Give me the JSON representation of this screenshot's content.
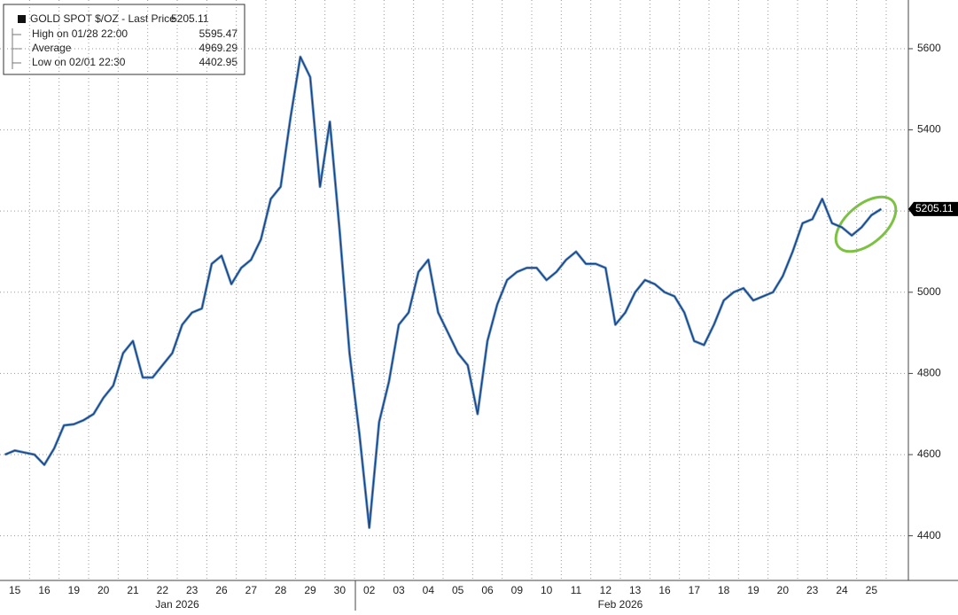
{
  "chart_data": {
    "type": "line",
    "legend": {
      "title": "GOLD SPOT $/OZ - Last Price",
      "last": 5205.11,
      "rows": [
        {
          "label": "High on 01/28 22:00",
          "value": 5595.47
        },
        {
          "label": "Average",
          "value": 4969.29
        },
        {
          "label": "Low on 02/01 22:30",
          "value": 4402.95
        }
      ]
    },
    "month_labels": [
      "Jan 2026",
      "Feb 2026"
    ],
    "categories": [
      null,
      "15",
      null,
      null,
      "16",
      null,
      null,
      "19",
      null,
      null,
      "20",
      null,
      null,
      "21",
      null,
      null,
      "22",
      null,
      null,
      "23",
      null,
      null,
      "26",
      null,
      null,
      "27",
      null,
      null,
      "28",
      null,
      null,
      "29",
      null,
      null,
      "30",
      null,
      null,
      "02",
      null,
      null,
      "03",
      null,
      null,
      "04",
      null,
      null,
      "05",
      null,
      null,
      "06",
      null,
      null,
      "09",
      null,
      null,
      "10",
      null,
      null,
      "11",
      null,
      null,
      "12",
      null,
      null,
      "13",
      null,
      null,
      "16",
      null,
      null,
      "17",
      null,
      null,
      "18",
      null,
      null,
      "19",
      null,
      null,
      "20",
      null,
      null,
      "23",
      null,
      null,
      "24",
      null,
      null,
      "25",
      null
    ],
    "series": [
      {
        "name": "GOLD SPOT $/OZ",
        "color": "#1b3f73",
        "values": [
          4600,
          4610,
          4605,
          4600,
          4575,
          4615,
          4672,
          4675,
          4685,
          4700,
          4740,
          4770,
          4850,
          4880,
          4790,
          4790,
          4820,
          4850,
          4920,
          4950,
          4960,
          5070,
          5090,
          5020,
          5060,
          5080,
          5130,
          5230,
          5260,
          5430,
          5580,
          5530,
          5260,
          5420,
          5150,
          4850,
          4650,
          4420,
          4680,
          4780,
          4920,
          4950,
          5050,
          5080,
          4950,
          4900,
          4850,
          4820,
          4700,
          4880,
          4970,
          5030,
          5050,
          5060,
          5060,
          5030,
          5050,
          5080,
          5100,
          5070,
          5070,
          5060,
          4920,
          4950,
          5000,
          5030,
          5020,
          5000,
          4990,
          4950,
          4880,
          4870,
          4920,
          4980,
          5000,
          5010,
          4980,
          4990,
          5000,
          5040,
          5100,
          5170,
          5180,
          5230,
          5170,
          5160,
          5140,
          5160,
          5190,
          5205.11
        ]
      }
    ],
    "ylim": [
      4290,
      5720
    ],
    "yticks": [
      4400,
      4600,
      4800,
      5000,
      5200,
      5400,
      5600
    ],
    "grid": true
  }
}
